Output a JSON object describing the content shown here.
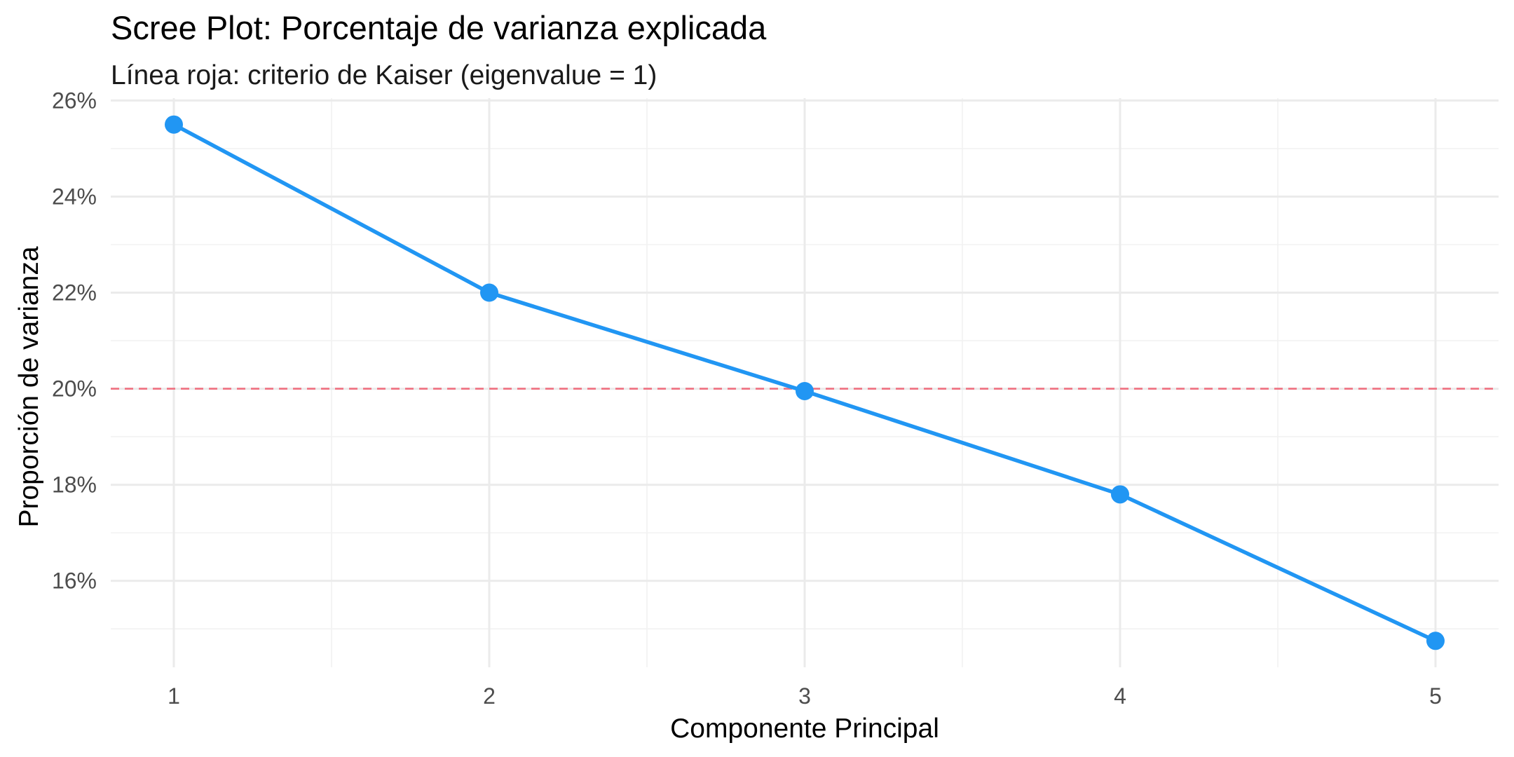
{
  "chart_data": {
    "type": "line",
    "title": "Scree Plot: Porcentaje de varianza explicada",
    "subtitle": "Línea roja: criterio de Kaiser (eigenvalue = 1)",
    "xlabel": "Componente Principal",
    "ylabel": "Proporción de varianza",
    "x": [
      1,
      2,
      3,
      4,
      5
    ],
    "y": [
      25.5,
      22.0,
      19.95,
      17.8,
      14.75
    ],
    "x_ticks": [
      "1",
      "2",
      "3",
      "4",
      "5"
    ],
    "y_ticks": [
      16,
      18,
      20,
      22,
      24,
      26
    ],
    "y_tick_labels": [
      "16%",
      "18%",
      "20%",
      "22%",
      "24%",
      "26%"
    ],
    "xlim": [
      0.8,
      5.2
    ],
    "ylim": [
      14.2,
      26.05
    ],
    "reference_line": {
      "y": 20,
      "style": "dashed",
      "color": "#f07080"
    },
    "series_color": "#2196f3",
    "grid": true,
    "legend": "none"
  }
}
